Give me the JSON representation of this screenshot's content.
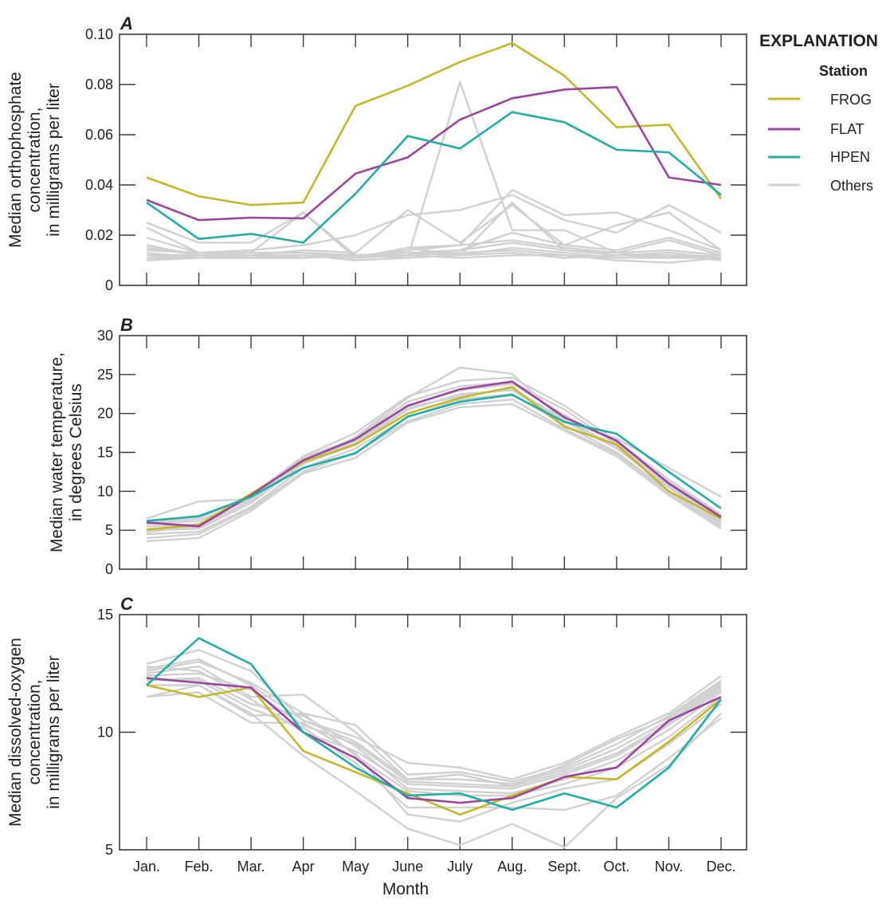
{
  "chart_data": {
    "type": "line",
    "x": [
      "Jan.",
      "Feb.",
      "Mar.",
      "Apr",
      "May",
      "June",
      "July",
      "Aug.",
      "Sept.",
      "Oct.",
      "Nov.",
      "Dec."
    ],
    "xlabel": "Month",
    "legend": {
      "title": "EXPLANATION",
      "subtitle": "Station",
      "placement": "right",
      "entries": [
        {
          "name": "FROG",
          "color": "#c5b827"
        },
        {
          "name": "FLAT",
          "color": "#9c44a0"
        },
        {
          "name": "HPEN",
          "color": "#21ada8"
        },
        {
          "name": "Others",
          "color": "#d0d0d0"
        }
      ]
    },
    "panels": [
      {
        "letter": "A",
        "ylabel_lines": [
          "Median orthophosphate",
          "concentration,",
          "in milligrams per liter"
        ],
        "ylim": [
          0,
          0.1
        ],
        "yticks": [
          0,
          0.02,
          0.04,
          0.06,
          0.08,
          0.1
        ],
        "ytick_labels": [
          "0",
          "0.02",
          "0.04",
          "0.06",
          "0.08",
          "0.10"
        ],
        "show_xtick_labels": false,
        "series": [
          {
            "name": "FROG",
            "values": [
              0.043,
              0.0355,
              0.032,
              0.033,
              0.0715,
              0.0795,
              0.089,
              0.0965,
              0.0835,
              0.063,
              0.064,
              0.0345
            ]
          },
          {
            "name": "FLAT",
            "values": [
              0.034,
              0.026,
              0.027,
              0.0267,
              0.0445,
              0.051,
              0.066,
              0.0745,
              0.078,
              0.079,
              0.043,
              0.04
            ]
          },
          {
            "name": "HPEN",
            "values": [
              0.033,
              0.0185,
              0.0205,
              0.017,
              0.0365,
              0.0595,
              0.0545,
              0.069,
              0.065,
              0.054,
              0.053,
              0.036
            ]
          }
        ],
        "others": [
          [
            0.025,
            0.017,
            0.017,
            0.029,
            0.012,
            0.011,
            0.081,
            0.022,
            0.022,
            0.013,
            0.011,
            0.011
          ],
          [
            0.023,
            0.013,
            0.013,
            0.029,
            0.011,
            0.015,
            0.016,
            0.038,
            0.028,
            0.029,
            0.022,
            0.014
          ],
          [
            0.019,
            0.013,
            0.014,
            0.016,
            0.02,
            0.028,
            0.03,
            0.036,
            0.026,
            0.021,
            0.032,
            0.021
          ],
          [
            0.016,
            0.012,
            0.012,
            0.014,
            0.013,
            0.03,
            0.017,
            0.032,
            0.016,
            0.024,
            0.029,
            0.014
          ],
          [
            0.015,
            0.012,
            0.013,
            0.013,
            0.011,
            0.015,
            0.012,
            0.033,
            0.014,
            0.013,
            0.018,
            0.012
          ],
          [
            0.014,
            0.013,
            0.013,
            0.013,
            0.012,
            0.012,
            0.014,
            0.021,
            0.016,
            0.014,
            0.019,
            0.013
          ],
          [
            0.013,
            0.011,
            0.012,
            0.012,
            0.011,
            0.014,
            0.016,
            0.018,
            0.015,
            0.013,
            0.014,
            0.012
          ],
          [
            0.012,
            0.012,
            0.011,
            0.011,
            0.012,
            0.013,
            0.014,
            0.017,
            0.014,
            0.012,
            0.013,
            0.011
          ],
          [
            0.012,
            0.011,
            0.012,
            0.012,
            0.011,
            0.012,
            0.013,
            0.014,
            0.012,
            0.01,
            0.009,
            0.011
          ],
          [
            0.011,
            0.011,
            0.011,
            0.012,
            0.01,
            0.011,
            0.012,
            0.013,
            0.011,
            0.012,
            0.012,
            0.01
          ],
          [
            0.011,
            0.012,
            0.012,
            0.011,
            0.012,
            0.013,
            0.012,
            0.015,
            0.013,
            0.011,
            0.011,
            0.012
          ],
          [
            0.01,
            0.011,
            0.011,
            0.011,
            0.012,
            0.012,
            0.011,
            0.012,
            0.012,
            0.011,
            0.012,
            0.011
          ]
        ]
      },
      {
        "letter": "B",
        "ylabel_lines": [
          "Median water temperature,",
          "in degrees Celsius"
        ],
        "ylim": [
          0,
          30
        ],
        "yticks": [
          0,
          5,
          10,
          15,
          20,
          25,
          30
        ],
        "ytick_labels": [
          "0",
          "5",
          "10",
          "15",
          "20",
          "25",
          "30"
        ],
        "show_xtick_labels": false,
        "series": [
          {
            "name": "FROG",
            "values": [
              5.1,
              5.7,
              9.7,
              13.8,
              16.0,
              20.0,
              22.0,
              23.4,
              18.3,
              16.0,
              10.0,
              6.5
            ]
          },
          {
            "name": "FLAT",
            "values": [
              6.0,
              5.5,
              9.5,
              14.0,
              16.7,
              21.0,
              23.1,
              24.1,
              19.5,
              16.5,
              11.0,
              6.7
            ]
          },
          {
            "name": "HPEN",
            "values": [
              6.2,
              6.8,
              9.3,
              13.0,
              14.9,
              19.6,
              21.5,
              22.4,
              18.9,
              17.4,
              12.5,
              7.8
            ]
          }
        ],
        "others": [
          [
            6.5,
            8.7,
            9.0,
            13.5,
            17.0,
            22.0,
            25.9,
            25.1,
            19.0,
            16.8,
            13.0,
            9.3
          ],
          [
            6.0,
            6.5,
            9.5,
            14.5,
            17.5,
            22.2,
            24.2,
            24.6,
            21.0,
            16.5,
            11.5,
            7.0
          ],
          [
            5.5,
            5.8,
            9.2,
            14.3,
            16.8,
            21.5,
            23.5,
            24.0,
            20.5,
            16.0,
            11.0,
            6.5
          ],
          [
            5.0,
            5.2,
            8.5,
            13.5,
            16.0,
            20.5,
            22.5,
            23.0,
            19.0,
            15.5,
            10.5,
            6.0
          ],
          [
            4.5,
            4.8,
            8.0,
            13.0,
            15.5,
            19.5,
            21.8,
            22.5,
            18.5,
            15.0,
            10.0,
            5.8
          ],
          [
            4.0,
            4.5,
            7.8,
            12.5,
            15.0,
            19.0,
            21.2,
            21.8,
            18.0,
            14.8,
            9.8,
            5.5
          ],
          [
            3.6,
            4.0,
            7.5,
            12.3,
            14.3,
            18.8,
            20.8,
            21.2,
            17.8,
            14.5,
            9.5,
            5.2
          ],
          [
            4.8,
            5.5,
            8.8,
            14.0,
            16.5,
            21.0,
            23.0,
            23.8,
            19.8,
            16.2,
            11.2,
            6.8
          ],
          [
            5.8,
            6.2,
            9.0,
            13.8,
            16.2,
            20.8,
            22.2,
            23.2,
            19.2,
            15.8,
            10.8,
            6.2
          ]
        ]
      },
      {
        "letter": "C",
        "ylabel_lines": [
          "Median dissolved-oxygen",
          "concentration,",
          "in milligrams per liter"
        ],
        "ylim": [
          5,
          15
        ],
        "yticks": [
          5,
          10,
          15
        ],
        "ytick_labels": [
          "5",
          "10",
          "15"
        ],
        "show_xtick_labels": true,
        "series": [
          {
            "name": "FROG",
            "values": [
              12.0,
              11.5,
              11.9,
              9.2,
              8.3,
              7.4,
              6.5,
              7.3,
              8.1,
              8.0,
              9.6,
              11.4
            ]
          },
          {
            "name": "FLAT",
            "values": [
              12.3,
              12.1,
              11.9,
              10.0,
              8.9,
              7.2,
              7.0,
              7.2,
              8.1,
              8.5,
              10.5,
              11.5
            ]
          },
          {
            "name": "HPEN",
            "values": [
              12.0,
              14.0,
              12.9,
              10.0,
              8.5,
              7.3,
              7.4,
              6.7,
              7.4,
              6.8,
              8.5,
              11.4
            ]
          }
        ],
        "others": [
          [
            12.9,
            13.5,
            12.6,
            10.5,
            9.8,
            8.7,
            8.5,
            8.0,
            8.7,
            9.8,
            10.8,
            12.4
          ],
          [
            12.6,
            13.0,
            12.1,
            10.8,
            10.3,
            8.2,
            8.3,
            7.9,
            8.5,
            9.5,
            10.7,
            12.2
          ],
          [
            12.5,
            12.8,
            11.5,
            11.6,
            10.0,
            8.0,
            8.0,
            7.8,
            8.4,
            9.3,
            10.5,
            12.0
          ],
          [
            12.4,
            12.5,
            11.8,
            10.3,
            9.5,
            7.9,
            7.8,
            7.7,
            8.3,
            9.1,
            10.4,
            11.9
          ],
          [
            12.8,
            12.6,
            11.4,
            10.0,
            9.2,
            7.8,
            7.7,
            7.6,
            8.2,
            9.0,
            10.3,
            11.8
          ],
          [
            12.2,
            12.3,
            11.2,
            10.7,
            9.4,
            7.6,
            7.5,
            7.4,
            8.0,
            8.8,
            10.1,
            11.7
          ],
          [
            12.0,
            12.0,
            10.7,
            10.8,
            9.0,
            7.5,
            7.3,
            7.3,
            7.8,
            8.5,
            9.8,
            11.5
          ],
          [
            11.5,
            11.7,
            10.4,
            10.4,
            9.1,
            6.5,
            6.2,
            7.0,
            7.6,
            8.0,
            9.5,
            11.2
          ],
          [
            11.5,
            12.0,
            10.8,
            9.0,
            7.5,
            5.9,
            5.2,
            6.1,
            5.1,
            7.2,
            8.6,
            10.8
          ],
          [
            12.3,
            12.2,
            11.0,
            10.2,
            8.7,
            6.8,
            6.8,
            6.8,
            6.7,
            7.3,
            8.9,
            10.6
          ],
          [
            12.7,
            13.1,
            12.0,
            10.5,
            9.6,
            8.0,
            8.2,
            7.7,
            8.6,
            9.7,
            10.6,
            12.1
          ]
        ]
      }
    ]
  }
}
